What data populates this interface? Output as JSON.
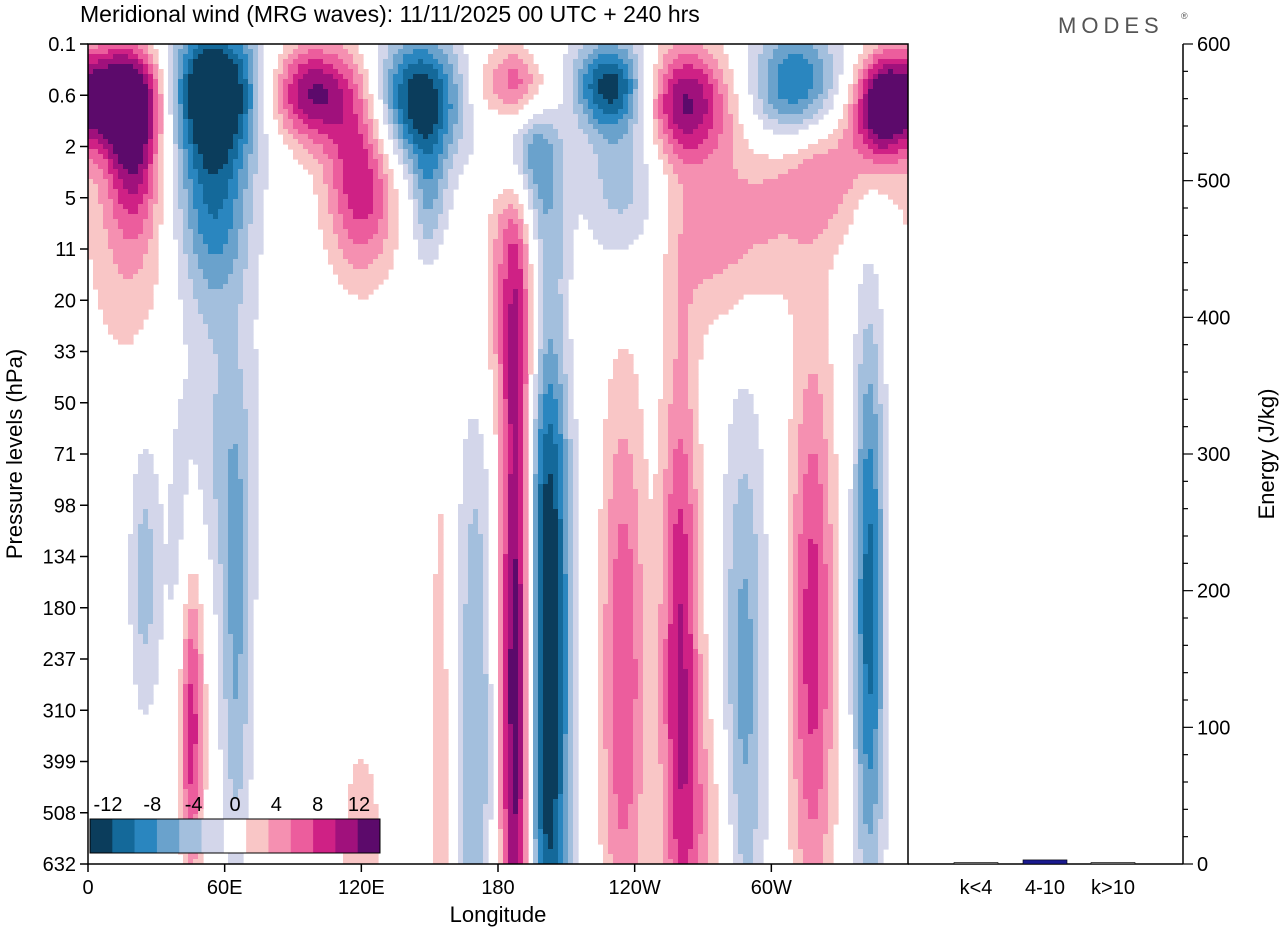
{
  "chart_data": [
    {
      "type": "heatmap",
      "title": "Meridional wind (MRG waves):  11/11/2025  00 UTC  + 240 hrs",
      "xlabel": "Longitude",
      "ylabel": "Pressure levels (hPa)",
      "x_ticks": [
        "0",
        "60E",
        "120E",
        "180",
        "120W",
        "60W"
      ],
      "x_tick_degrees": [
        0,
        60,
        120,
        180,
        240,
        300
      ],
      "xlim": [
        0,
        360
      ],
      "y_ticks": [
        "0.1",
        "0.6",
        "2",
        "5",
        "11",
        "20",
        "33",
        "50",
        "71",
        "98",
        "134",
        "180",
        "237",
        "310",
        "399",
        "508",
        "632"
      ],
      "colorbar": {
        "labels": [
          "-12",
          "-8",
          "-4",
          "0",
          "4",
          "8",
          "12"
        ],
        "levels": [
          -14,
          -12,
          -10,
          -8,
          -6,
          -4,
          -2,
          2,
          4,
          6,
          8,
          10,
          12,
          14
        ],
        "colors": [
          "#0b3d5c",
          "#14699a",
          "#2a86bf",
          "#6aa2cc",
          "#a3bfdd",
          "#d3d6ea",
          "#ffffff",
          "#f9c6c6",
          "#f590b1",
          "#ec5d9d",
          "#cf2185",
          "#a0117c",
          "#5c0a6b"
        ]
      },
      "features": [
        {
          "lon": 12,
          "lev": 0.6,
          "value": 14,
          "wlon": 16,
          "wlev": 0.7
        },
        {
          "lon": 55,
          "lev": 0.45,
          "value": -14,
          "wlon": 16,
          "wlev": 0.9
        },
        {
          "lon": 98,
          "lev": 0.55,
          "value": 12,
          "wlon": 14,
          "wlev": 0.7
        },
        {
          "lon": 145,
          "lev": 0.65,
          "value": -14,
          "wlon": 14,
          "wlev": 0.9
        },
        {
          "lon": 190,
          "lev": 0.45,
          "value": 11,
          "wlon": 13,
          "wlev": 0.6
        },
        {
          "lon": 228,
          "lev": 0.4,
          "value": -11,
          "wlon": 12,
          "wlev": 0.6
        },
        {
          "lon": 262,
          "lev": 0.7,
          "value": 12,
          "wlon": 14,
          "wlev": 0.8
        },
        {
          "lon": 312,
          "lev": 0.55,
          "value": -14,
          "wlon": 15,
          "wlev": 0.9
        },
        {
          "lon": 348,
          "lev": 0.8,
          "value": 12,
          "wlon": 8,
          "wlev": 0.7
        },
        {
          "lon": 20,
          "lev": 1.9,
          "value": 9,
          "wlon": 8,
          "wlev": 1.1
        },
        {
          "lon": 55,
          "lev": 4.5,
          "value": -10,
          "wlon": 12,
          "wlev": 1.6
        },
        {
          "lon": 120,
          "lev": 3.5,
          "value": 10,
          "wlon": 11,
          "wlev": 1.3
        },
        {
          "lon": 150,
          "lev": 5,
          "value": -6,
          "wlon": 6,
          "wlev": 1
        },
        {
          "lon": 185,
          "lev": 6,
          "value": 5,
          "wlon": 9,
          "wlev": 1.1
        },
        {
          "lon": 190,
          "lev": 1.7,
          "value": -10,
          "wlon": 9,
          "wlev": 1.2
        },
        {
          "lon": 235,
          "lev": 2.8,
          "value": -6,
          "wlon": 12,
          "wlev": 1.5
        },
        {
          "lon": 280,
          "lev": 9,
          "value": 5,
          "wlon": 20,
          "wlev": 1.3
        },
        {
          "lon": 320,
          "lev": 2,
          "value": 8,
          "wlon": 18,
          "wlev": 1.1
        },
        {
          "lon": 18,
          "lev": 8,
          "value": 4,
          "wlon": 14,
          "wlev": 2
        },
        {
          "lon": 190,
          "lev": 28,
          "value": 4,
          "wlon": 15,
          "wlev": 1.3
        },
        {
          "lon": 60,
          "lev": 68,
          "value": -4,
          "wlon": 12,
          "wlev": 2
        },
        {
          "lon": 45,
          "lev": 330,
          "value": 10,
          "wlon": 4,
          "wlev": 2.2
        },
        {
          "lon": 40,
          "lev": 180,
          "value": -3,
          "wlon": 4,
          "wlev": 3
        },
        {
          "lon": 65,
          "lev": 240,
          "value": -6,
          "wlon": 5,
          "wlev": 3
        },
        {
          "lon": 25,
          "lev": 150,
          "value": -5,
          "wlon": 5,
          "wlev": 2
        },
        {
          "lon": 188,
          "lev": 270,
          "value": 15,
          "wlon": 5,
          "wlev": 6
        },
        {
          "lon": 202,
          "lev": 230,
          "value": -15,
          "wlon": 7,
          "wlev": 6
        },
        {
          "lon": 170,
          "lev": 350,
          "value": -6,
          "wlon": 6,
          "wlev": 5
        },
        {
          "lon": 155,
          "lev": 400,
          "value": 3,
          "wlon": 4,
          "wlev": 6
        },
        {
          "lon": 235,
          "lev": 260,
          "value": 8,
          "wlon": 7,
          "wlev": 4
        },
        {
          "lon": 260,
          "lev": 220,
          "value": 10,
          "wlon": 6,
          "wlev": 4
        },
        {
          "lon": 288,
          "lev": 280,
          "value": -7,
          "wlon": 7,
          "wlev": 4
        },
        {
          "lon": 318,
          "lev": 210,
          "value": 9,
          "wlon": 7,
          "wlev": 4
        },
        {
          "lon": 343,
          "lev": 180,
          "value": -11,
          "wlon": 5,
          "wlev": 4
        },
        {
          "lon": 270,
          "lev": 560,
          "value": 4,
          "wlon": 10,
          "wlev": 2
        },
        {
          "lon": 120,
          "lev": 600,
          "value": 3,
          "wlon": 8,
          "wlev": 2
        }
      ]
    },
    {
      "type": "bar",
      "categories": [
        "k<4",
        "4-10",
        "k>10"
      ],
      "values": [
        0,
        3,
        0
      ],
      "ylabel": "Energy (J/kg)",
      "ylim": [
        0,
        600
      ],
      "y_ticks": [
        "0",
        "100",
        "200",
        "300",
        "400",
        "500",
        "600"
      ],
      "bar_color": "#1a1a8f"
    }
  ],
  "logo": "MODES"
}
